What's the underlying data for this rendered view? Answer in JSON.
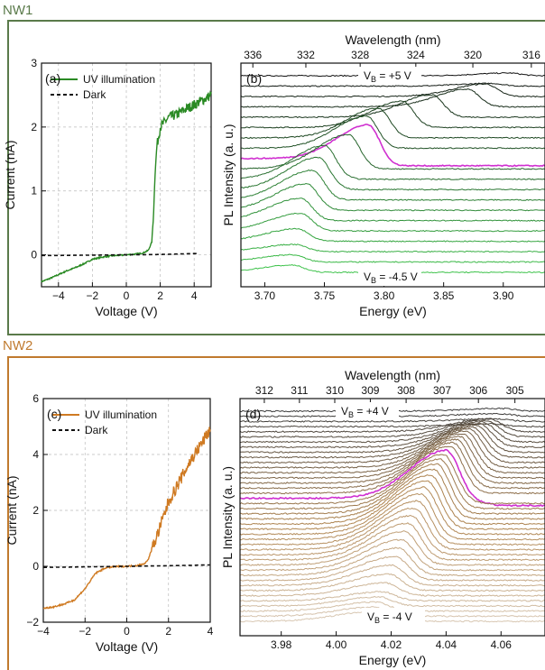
{
  "sections": [
    {
      "label": "NW1",
      "color": "#5a7a4a"
    },
    {
      "label": "NW2",
      "color": "#c07a2e"
    }
  ],
  "chart_data": [
    {
      "panel": "(a)",
      "type": "line",
      "xlabel": "Voltage (V)",
      "ylabel": "Current (nA)",
      "xlim": [
        -5,
        5
      ],
      "ylim": [
        -0.5,
        3
      ],
      "xticks": [
        -4,
        -2,
        0,
        2,
        4
      ],
      "yticks": [
        0,
        1,
        2,
        3
      ],
      "grid": true,
      "legend_position": "top-left",
      "series": [
        {
          "name": "UV illumination",
          "color": "#2a8a24",
          "style": "solid",
          "x": [
            -5,
            -4.5,
            -4,
            -3.5,
            -3,
            -2.5,
            -2,
            -1.5,
            -1,
            -0.5,
            0,
            0.5,
            1,
            1.3,
            1.5,
            1.6,
            1.7,
            1.8,
            2,
            2.5,
            3,
            3.5,
            4,
            4.5,
            5
          ],
          "y": [
            -0.42,
            -0.37,
            -0.31,
            -0.25,
            -0.2,
            -0.14,
            -0.07,
            -0.04,
            -0.02,
            -0.01,
            0,
            0.01,
            0.03,
            0.07,
            0.2,
            0.6,
            1.3,
            1.7,
            2.0,
            2.15,
            2.2,
            2.28,
            2.35,
            2.42,
            2.5
          ]
        },
        {
          "name": "Dark",
          "color": "#111111",
          "style": "dashed",
          "x": [
            -5,
            -4,
            -2,
            0,
            2,
            4,
            4.2
          ],
          "y": [
            -0.01,
            -0.01,
            -0.005,
            0,
            0.005,
            0.02,
            0.02
          ]
        }
      ]
    },
    {
      "panel": "(b)",
      "type": "line",
      "xlabel": "Energy (eV)",
      "ylabel": "PL Intensity (a. u.)",
      "top_xlabel": "Wavelength (nm)",
      "xlim": [
        3.68,
        3.935
      ],
      "xticks": [
        3.7,
        3.75,
        3.8,
        3.85,
        3.9
      ],
      "xtick_labels": [
        "3.70",
        "3.75",
        "3.80",
        "3.85",
        "3.90"
      ],
      "top_ticks": [
        336,
        332,
        328,
        324,
        320,
        316
      ],
      "annotation_top": {
        "main": "V",
        "sub": "B",
        "rest": " = +5 V"
      },
      "annotation_bottom": {
        "main": "V",
        "sub": "B",
        "rest": " = -4.5 V"
      },
      "highlight_color": "#d030d0",
      "curve_count": 20,
      "highlight_index": 8,
      "peak_energies": [
        3.905,
        3.89,
        3.885,
        3.87,
        3.84,
        3.815,
        3.795,
        3.785,
        3.787,
        3.77,
        3.75,
        3.745,
        3.74,
        3.735,
        3.73,
        3.73,
        3.727,
        3.725,
        3.723,
        3.723
      ],
      "color_dark": "#111111",
      "color_light": "#3dc24a"
    },
    {
      "panel": "(c)",
      "type": "line",
      "xlabel": "Voltage (V)",
      "ylabel": "Current (nA)",
      "xlim": [
        -4,
        4
      ],
      "ylim": [
        -2,
        6
      ],
      "xticks": [
        -4,
        -2,
        0,
        2,
        4
      ],
      "yticks": [
        -2,
        0,
        2,
        4,
        6
      ],
      "grid": true,
      "legend_position": "top-left",
      "series": [
        {
          "name": "UV illumination",
          "color": "#cf7a22",
          "style": "solid",
          "x": [
            -4,
            -3.5,
            -3,
            -2.5,
            -2,
            -1.5,
            -1,
            -0.5,
            0,
            0.5,
            0.8,
            1,
            1.2,
            1.5,
            2,
            2.5,
            3,
            3.5,
            4
          ],
          "y": [
            -1.5,
            -1.45,
            -1.35,
            -1.2,
            -0.8,
            -0.25,
            -0.05,
            -0.01,
            0,
            0.03,
            0.08,
            0.2,
            0.6,
            1.2,
            2.3,
            3.0,
            3.7,
            4.3,
            4.9
          ]
        },
        {
          "name": "Dark",
          "color": "#111111",
          "style": "dashed",
          "x": [
            -4,
            -2,
            0,
            2,
            4
          ],
          "y": [
            -0.04,
            -0.02,
            0,
            0.02,
            0.05
          ]
        }
      ]
    },
    {
      "panel": "(d)",
      "type": "line",
      "xlabel": "Energy (eV)",
      "ylabel": "PL Intensity (a. u.)",
      "top_xlabel": "Wavelength (nm)",
      "xlim": [
        3.965,
        4.076
      ],
      "xticks": [
        3.98,
        4.0,
        4.02,
        4.04,
        4.06
      ],
      "xtick_labels": [
        "3.98",
        "4.00",
        "4.02",
        "4.04",
        "4.06"
      ],
      "top_ticks": [
        312,
        311,
        310,
        309,
        308,
        307,
        306,
        305
      ],
      "annotation_top": {
        "main": "V",
        "sub": "B",
        "rest": " = +4 V"
      },
      "annotation_bottom": {
        "main": "V",
        "sub": "B",
        "rest": " = -4 V"
      },
      "highlight_color": "#d030d0",
      "curve_count": 42,
      "highlight_index": 17,
      "peak_start": 4.06,
      "peak_end": 4.012,
      "color_dark": "#3a3a3a",
      "color_mid": "#b08550",
      "color_light": "#d8c7b2"
    }
  ]
}
